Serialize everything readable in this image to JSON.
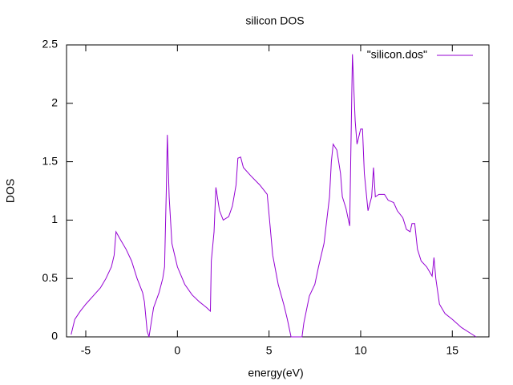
{
  "chart_data": {
    "type": "line",
    "title": "silicon DOS",
    "x_label": "energy(eV)",
    "y_label": "DOS",
    "x": [
      -5.8,
      -5.6,
      -5.3,
      -5.0,
      -4.6,
      -4.2,
      -3.9,
      -3.6,
      -3.45,
      -3.35,
      -3.1,
      -2.8,
      -2.5,
      -2.2,
      -1.9,
      -1.8,
      -1.65,
      -1.55,
      -1.45,
      -1.3,
      -1.0,
      -0.8,
      -0.7,
      -0.6,
      -0.55,
      -0.45,
      -0.3,
      0.0,
      0.4,
      0.8,
      1.2,
      1.6,
      1.8,
      1.85,
      2.0,
      2.1,
      2.3,
      2.5,
      2.8,
      3.0,
      3.2,
      3.3,
      3.45,
      3.6,
      4.0,
      4.5,
      4.9,
      5.0,
      5.2,
      5.5,
      5.8,
      6.0,
      6.2,
      6.8,
      6.9,
      7.2,
      7.5,
      7.7,
      8.0,
      8.3,
      8.4,
      8.5,
      8.7,
      8.9,
      9.0,
      9.2,
      9.4,
      9.55,
      9.7,
      9.8,
      10.0,
      10.1,
      10.2,
      10.4,
      10.6,
      10.7,
      10.8,
      11.0,
      11.3,
      11.5,
      11.8,
      12.0,
      12.3,
      12.5,
      12.7,
      12.8,
      12.95,
      13.1,
      13.3,
      13.6,
      13.9,
      14.0,
      14.1,
      14.3,
      14.6,
      15.0,
      15.5,
      16.0,
      16.3
    ],
    "series": [
      {
        "name": "\"silicon.dos\"",
        "color": "#9400d3",
        "values": [
          0.02,
          0.15,
          0.22,
          0.28,
          0.35,
          0.42,
          0.5,
          0.6,
          0.7,
          0.9,
          0.83,
          0.75,
          0.65,
          0.5,
          0.38,
          0.3,
          0.05,
          0.0,
          0.1,
          0.25,
          0.38,
          0.5,
          0.6,
          1.3,
          1.73,
          1.2,
          0.8,
          0.6,
          0.45,
          0.36,
          0.3,
          0.25,
          0.22,
          0.65,
          0.9,
          1.28,
          1.08,
          1.0,
          1.03,
          1.12,
          1.3,
          1.53,
          1.54,
          1.45,
          1.38,
          1.3,
          1.22,
          1.05,
          0.7,
          0.45,
          0.28,
          0.15,
          0.0,
          0.0,
          0.12,
          0.35,
          0.45,
          0.6,
          0.8,
          1.2,
          1.5,
          1.65,
          1.6,
          1.4,
          1.2,
          1.1,
          0.95,
          2.42,
          1.85,
          1.65,
          1.78,
          1.78,
          1.4,
          1.08,
          1.2,
          1.45,
          1.2,
          1.22,
          1.22,
          1.17,
          1.15,
          1.08,
          1.02,
          0.92,
          0.9,
          0.97,
          0.97,
          0.75,
          0.65,
          0.6,
          0.52,
          0.68,
          0.5,
          0.28,
          0.2,
          0.15,
          0.08,
          0.03,
          0.0
        ]
      }
    ],
    "xlim": [
      -6.05,
      17.0
    ],
    "xticks": [
      -5,
      0,
      5,
      10,
      15
    ],
    "ylim": [
      0,
      2.5
    ],
    "yticks": [
      0,
      0.5,
      1,
      1.5,
      2,
      2.5
    ],
    "legend": "top-right",
    "grid": false
  }
}
